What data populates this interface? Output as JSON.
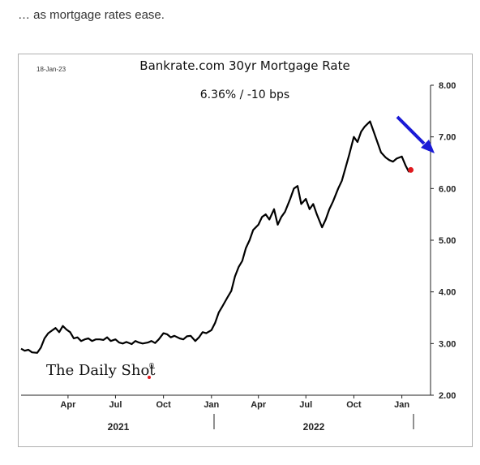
{
  "caption": "… as mortgage rates ease.",
  "chart_data": {
    "type": "line",
    "title": "Bankrate.com 30yr Mortgage Rate",
    "subtitle": "6.36%  /  -10 bps",
    "date_label": "18-Jan-23",
    "logo": "The Daily Shot",
    "logo_mark": "®",
    "ylim": [
      2.0,
      8.0
    ],
    "y_ticks": [
      "2.00",
      "3.00",
      "4.00",
      "5.00",
      "6.00",
      "7.00",
      "8.00"
    ],
    "x_ticks": [
      "Apr",
      "Jul",
      "Oct",
      "Jan",
      "Apr",
      "Jul",
      "Oct",
      "Jan"
    ],
    "years": [
      "2021",
      "2022"
    ],
    "line_color": "#000000",
    "marker_color": "#e0191e",
    "arrow_color": "#1a1ad6",
    "series": [
      {
        "x": [
          "2021-01-01",
          "2021-01-08",
          "2021-01-15",
          "2021-01-22",
          "2021-02-01",
          "2021-02-08",
          "2021-02-15",
          "2021-02-22",
          "2021-03-01",
          "2021-03-08",
          "2021-03-15",
          "2021-03-22",
          "2021-03-29",
          "2021-04-05",
          "2021-04-12",
          "2021-04-19",
          "2021-04-26",
          "2021-05-03",
          "2021-05-10",
          "2021-05-17",
          "2021-05-24",
          "2021-06-01",
          "2021-06-08",
          "2021-06-15",
          "2021-06-22",
          "2021-07-01",
          "2021-07-08",
          "2021-07-15",
          "2021-07-22",
          "2021-08-01",
          "2021-08-08",
          "2021-08-15",
          "2021-08-22",
          "2021-09-01",
          "2021-09-08",
          "2021-09-15",
          "2021-09-22",
          "2021-10-01",
          "2021-10-08",
          "2021-10-15",
          "2021-10-22",
          "2021-11-01",
          "2021-11-08",
          "2021-11-15",
          "2021-11-22",
          "2021-12-01",
          "2021-12-08",
          "2021-12-15",
          "2021-12-22",
          "2022-01-01",
          "2022-01-08",
          "2022-01-15",
          "2022-01-22",
          "2022-02-01",
          "2022-02-08",
          "2022-02-15",
          "2022-02-22",
          "2022-03-01",
          "2022-03-08",
          "2022-03-15",
          "2022-03-22",
          "2022-04-01",
          "2022-04-08",
          "2022-04-15",
          "2022-04-22",
          "2022-05-01",
          "2022-05-08",
          "2022-05-15",
          "2022-05-22",
          "2022-06-01",
          "2022-06-08",
          "2022-06-15",
          "2022-06-22",
          "2022-07-01",
          "2022-07-08",
          "2022-07-15",
          "2022-07-22",
          "2022-08-01",
          "2022-08-08",
          "2022-08-15",
          "2022-08-22",
          "2022-09-01",
          "2022-09-08",
          "2022-09-15",
          "2022-09-22",
          "2022-10-01",
          "2022-10-08",
          "2022-10-15",
          "2022-10-22",
          "2022-11-01",
          "2022-11-08",
          "2022-11-15",
          "2022-11-22",
          "2022-12-01",
          "2022-12-08",
          "2022-12-15",
          "2022-12-22",
          "2023-01-01",
          "2023-01-08",
          "2023-01-14",
          "2023-01-18"
        ],
        "values": [
          2.9,
          2.86,
          2.88,
          2.83,
          2.82,
          2.92,
          3.1,
          3.2,
          3.25,
          3.3,
          3.22,
          3.34,
          3.27,
          3.22,
          3.1,
          3.12,
          3.05,
          3.08,
          3.1,
          3.05,
          3.08,
          3.08,
          3.07,
          3.12,
          3.05,
          3.08,
          3.02,
          3.0,
          3.03,
          2.99,
          3.05,
          3.02,
          3.0,
          3.02,
          3.05,
          3.01,
          3.08,
          3.2,
          3.18,
          3.12,
          3.15,
          3.1,
          3.08,
          3.14,
          3.15,
          3.05,
          3.12,
          3.22,
          3.2,
          3.26,
          3.4,
          3.6,
          3.72,
          3.9,
          4.02,
          4.3,
          4.48,
          4.6,
          4.85,
          5.0,
          5.2,
          5.3,
          5.45,
          5.5,
          5.4,
          5.6,
          5.3,
          5.45,
          5.55,
          5.8,
          6.0,
          6.05,
          5.7,
          5.8,
          5.6,
          5.7,
          5.5,
          5.25,
          5.4,
          5.6,
          5.75,
          6.0,
          6.15,
          6.4,
          6.65,
          7.0,
          6.9,
          7.1,
          7.2,
          7.3,
          7.1,
          6.9,
          6.7,
          6.6,
          6.55,
          6.52,
          6.58,
          6.62,
          6.45,
          6.33,
          6.36
        ]
      }
    ]
  }
}
